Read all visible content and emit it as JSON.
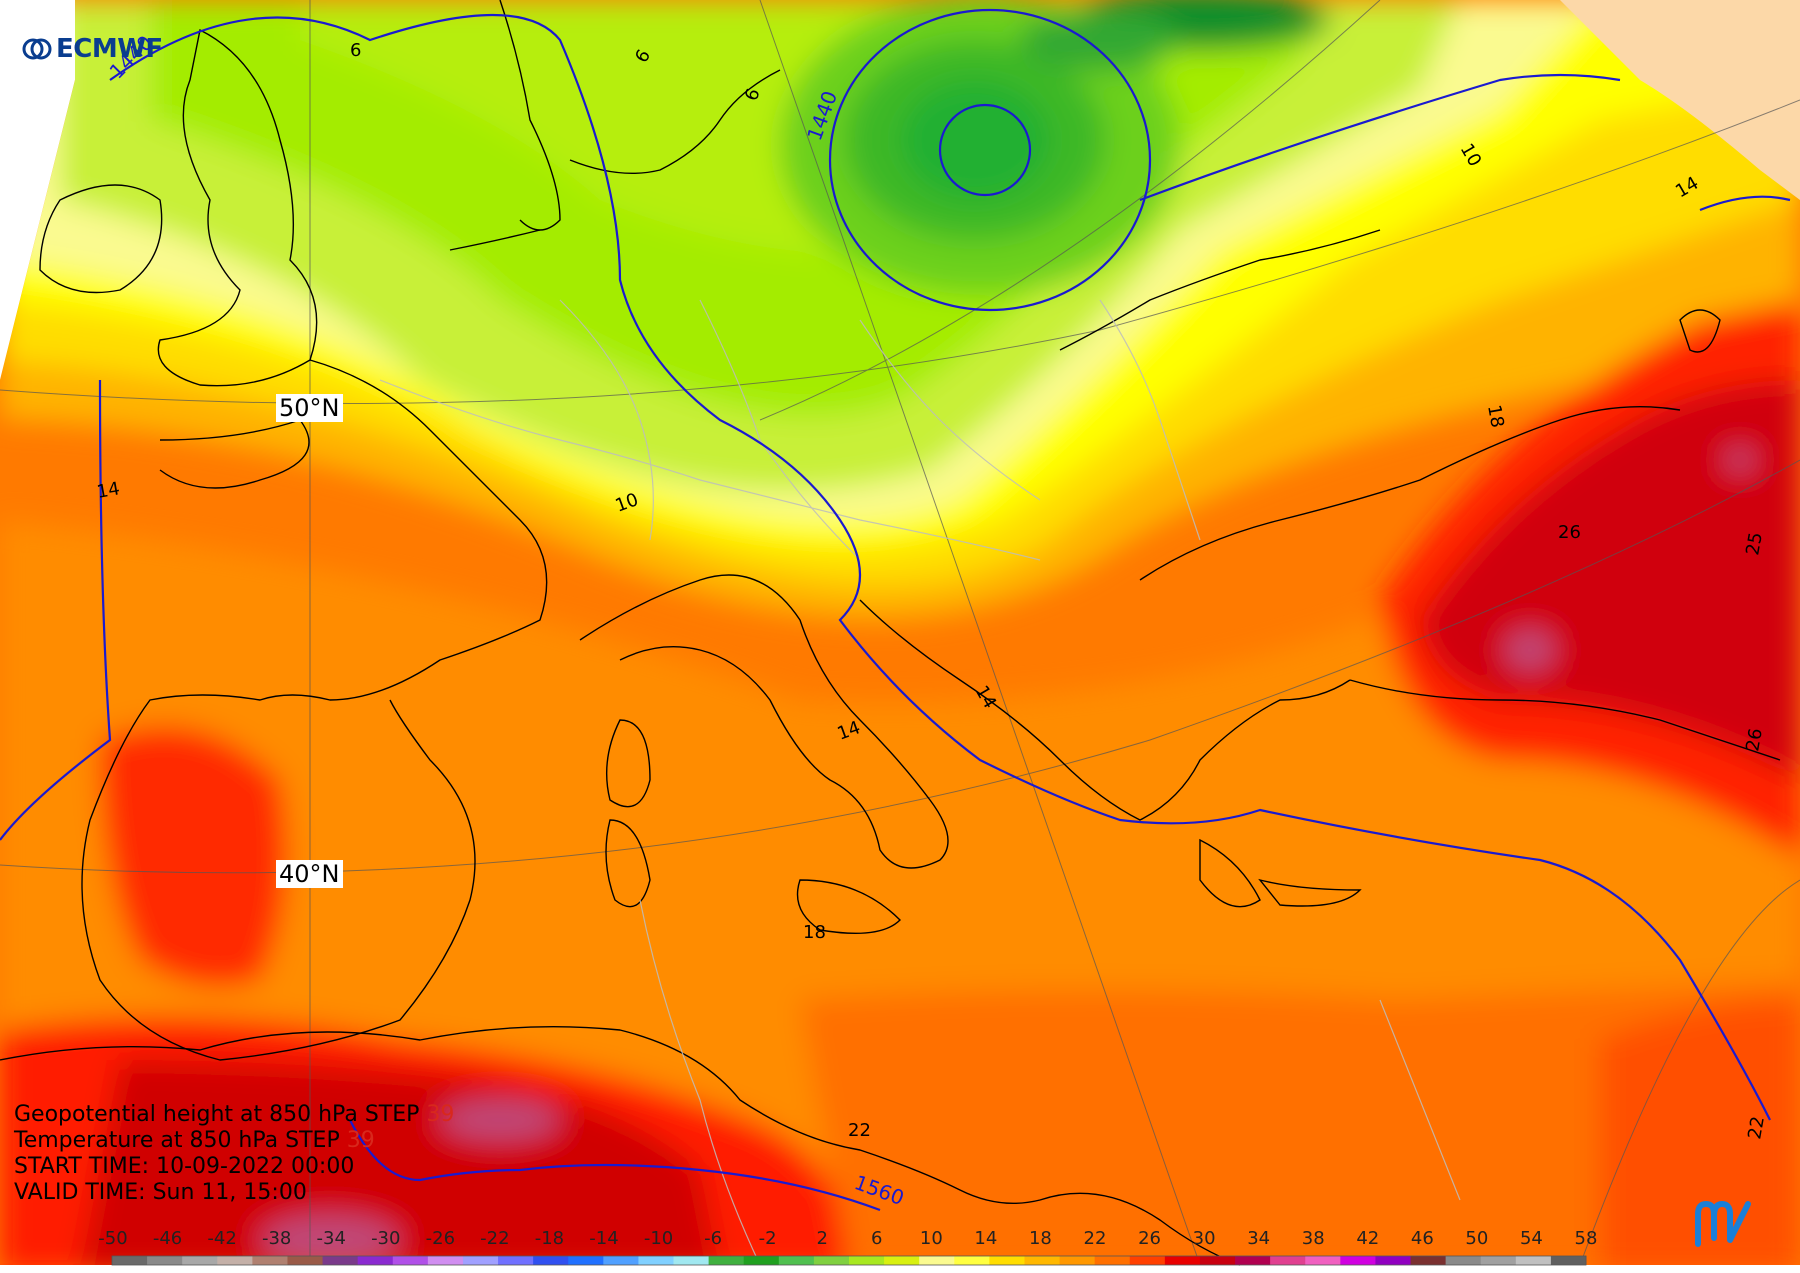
{
  "brand": {
    "name": "ECMWF",
    "logo_icon": "ecmwf-logo-icon",
    "corner_icon": "metview-logo-icon"
  },
  "header": {
    "line1_label": "Geopotential height at 850 hPa",
    "line1_step": "STEP",
    "line1_step_value": "39",
    "line2_label": "Temperature at 850 hPa",
    "line2_step": "STEP",
    "line2_step_value": "39",
    "start_time_label": "START TIME:",
    "start_time_value": "10-09-2022 00:00",
    "valid_time_label": "VALID TIME:",
    "valid_time_value": "Sun 11, 15:00"
  },
  "latitude_labels": {
    "lat50": "50°N",
    "lat40": "40°N"
  },
  "temperature_labels": [
    "6",
    "6",
    "6",
    "10",
    "10",
    "14",
    "14",
    "14",
    "14",
    "18",
    "18",
    "22",
    "22",
    "25",
    "26",
    "26"
  ],
  "height_labels": [
    "1440",
    "1440",
    "1560"
  ],
  "legend": {
    "ticks": [
      "-50",
      "-46",
      "-42",
      "-38",
      "-34",
      "-30",
      "-26",
      "-22",
      "-18",
      "-14",
      "-10",
      "-6",
      "-2",
      "2",
      "6",
      "10",
      "14",
      "18",
      "22",
      "26",
      "30",
      "34",
      "38",
      "42",
      "46",
      "50",
      "54",
      "58"
    ],
    "colors": [
      "#6a6a6a",
      "#8a8a8a",
      "#a8a8a8",
      "#c4b0a8",
      "#b08070",
      "#9a5a48",
      "#7a3a8a",
      "#8a2ad0",
      "#b050e8",
      "#d08ef0",
      "#a0a0ff",
      "#7070ff",
      "#3050f0",
      "#2070ff",
      "#50a0ff",
      "#80d0ff",
      "#a0e8f0",
      "#40b040",
      "#20a020",
      "#50c050",
      "#80d040",
      "#a8e820",
      "#d8f010",
      "#fafa90",
      "#ffff40",
      "#ffdd00",
      "#ffb800",
      "#ff9800",
      "#ff7000",
      "#ff4000",
      "#e80000",
      "#c80010",
      "#b00050",
      "#e04090",
      "#f060c0",
      "#d000e0",
      "#9000c0",
      "#7a3030",
      "#8a8a8a",
      "#a0a0a0",
      "#c0c0c0",
      "#606060"
    ]
  },
  "colors": {
    "green_dark": "#0a8f2a",
    "green": "#20b030",
    "green_mid": "#6cd01c",
    "green_light": "#a4ec00",
    "green_pale": "#c8f038",
    "yellow_pale": "#fafa90",
    "yellow": "#ffff00",
    "yellow_orange": "#ffdd00",
    "orange_light": "#ffb300",
    "orange": "#ff8c00",
    "orange_dark": "#ff6400",
    "red": "#ff1c00",
    "red_dark": "#d00000",
    "magenta": "#c04878",
    "peach": "#fcd8a8",
    "height_contour": "#1a1ad0",
    "coast": "#000000"
  }
}
